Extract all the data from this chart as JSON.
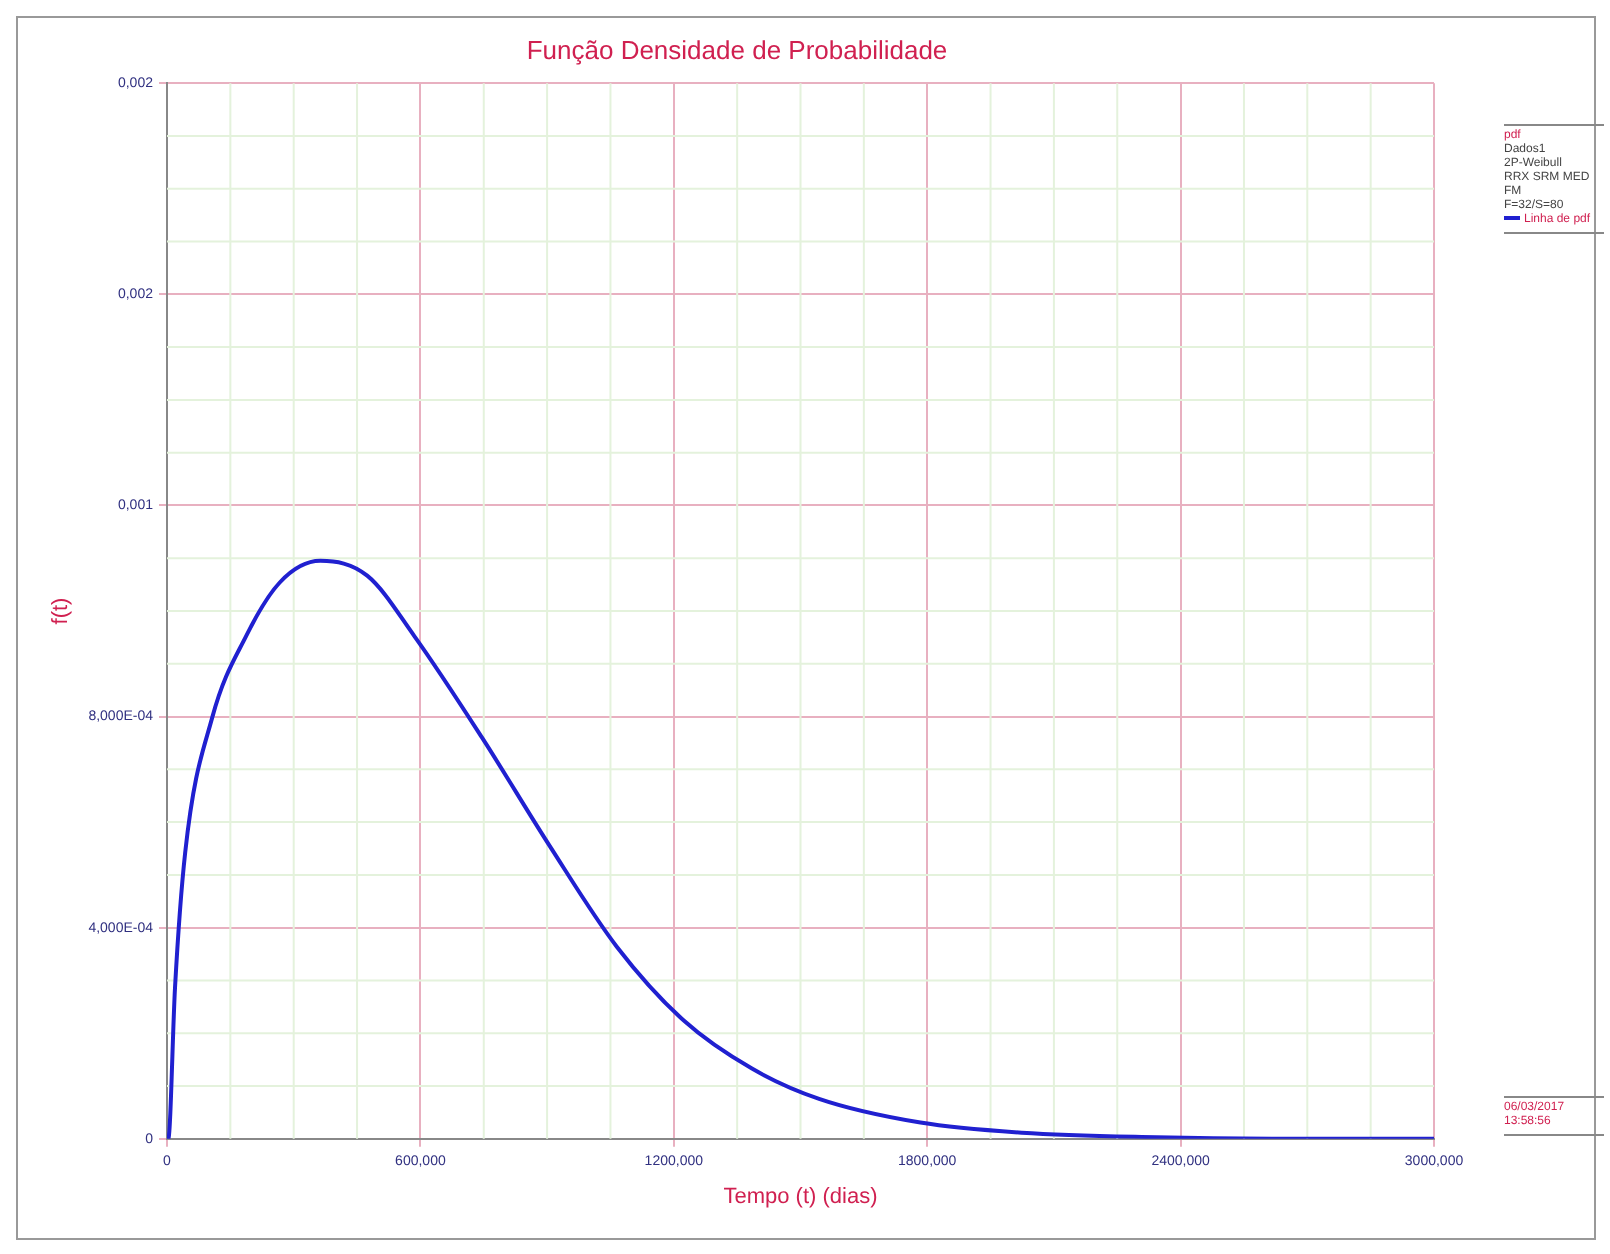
{
  "chart_data": {
    "type": "line",
    "title": "Função Densidade de Probabilidade",
    "xlabel": "Tempo (t) (dias)",
    "ylabel": "f(t)",
    "legend_title": "pdf",
    "x": [
      0,
      3,
      19,
      43,
      107,
      187,
      267,
      363,
      474,
      586,
      746,
      906,
      1065,
      1225,
      1385,
      1544,
      1784,
      2024,
      2343,
      2700,
      3000
    ],
    "series": [
      {
        "name": "Linha de pdf",
        "color": "#2020d0",
        "values": [
          0,
          0,
          0.000287,
          0.000542,
          0.000798,
          0.000952,
          0.001054,
          0.001095,
          0.001067,
          0.000952,
          0.00076,
          0.000555,
          0.000364,
          0.000223,
          0.000133,
          7.56e-05,
          3.07e-05,
          1.15e-05,
          3e-06,
          0,
          0
        ]
      }
    ],
    "xlim": [
      0,
      3000
    ],
    "xticks": [
      0,
      {
        "value": 600,
        "label": "600,000"
      },
      {
        "value": 1200,
        "label": "1200,000"
      },
      {
        "value": 1800,
        "label": "1800,000"
      },
      {
        "value": 2400,
        "label": "2400,000"
      },
      {
        "value": 3000,
        "label": "3000,000"
      }
    ],
    "ylim": [
      0,
      0.002
    ],
    "yticks": [
      0,
      {
        "value": 0.0004,
        "label": "4,000E-04"
      },
      {
        "value": 0.0008,
        "label": "8,000E-04"
      },
      {
        "value": 0.0012,
        "label": "0,001"
      },
      {
        "value": 0.0016,
        "label": "0,002"
      },
      {
        "value": 0.002,
        "label": "0,002"
      }
    ],
    "grid": true,
    "legend": "top right",
    "marker": "none",
    "line_style": "solid",
    "annotations": [
      "Dados1",
      "2P-Weibull",
      "RRX SRM MED FM",
      "F=32/S=80",
      "06/03/2017",
      "13:58:56"
    ]
  }
}
